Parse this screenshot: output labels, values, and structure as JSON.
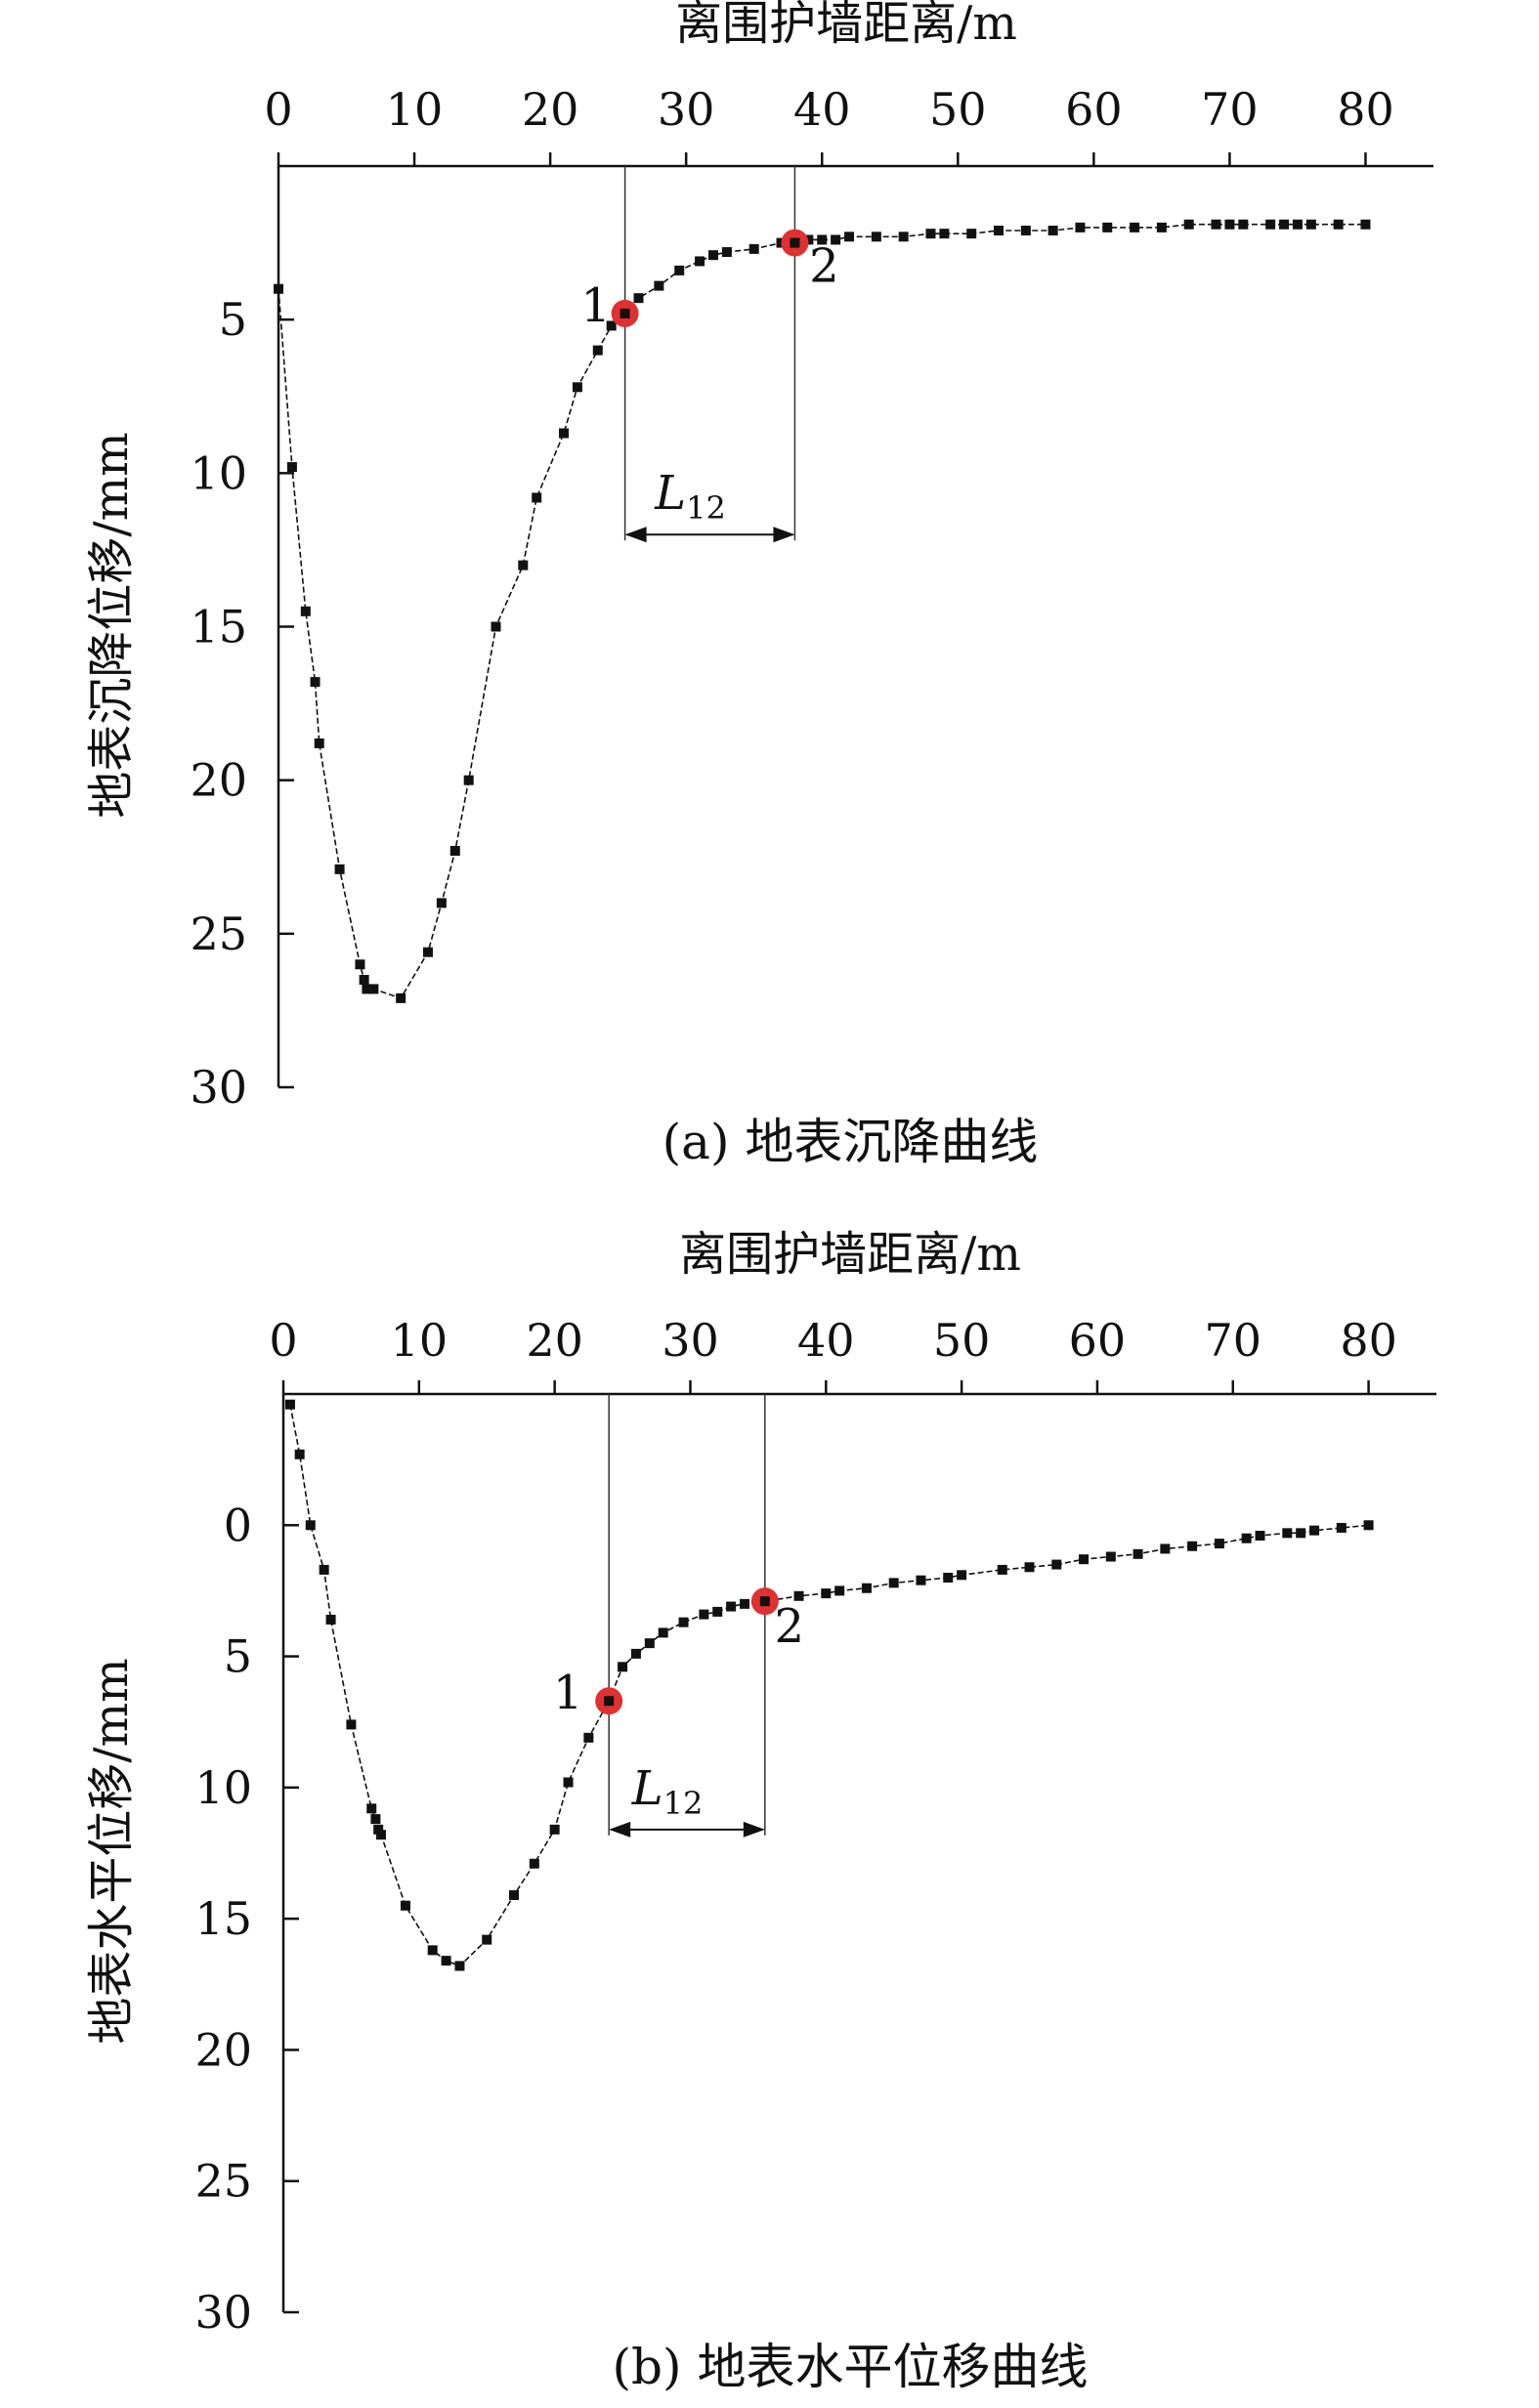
{
  "figure": {
    "panels": [
      {
        "id": "a",
        "caption": "(a) 地表沉降曲线",
        "annotation_labels": [
          "1",
          "2"
        ],
        "span_label": {
          "main": "L",
          "sub": "12"
        }
      },
      {
        "id": "b",
        "caption": "(b) 地表水平位移曲线",
        "annotation_labels": [
          "1",
          "2"
        ],
        "span_label": {
          "main": "L",
          "sub": "12"
        }
      }
    ],
    "colors": {
      "line": "#111111",
      "marker": "#111111",
      "highlight": "#e03030"
    }
  },
  "chart_data": [
    {
      "type": "line",
      "xlabel": "离围护墙距离/m",
      "ylabel": "地表沉降位移/mm",
      "x_axis_position": "top",
      "y_inverted": true,
      "xlim": [
        0,
        85
      ],
      "ylim": [
        0,
        30
      ],
      "xticks": [
        0,
        10,
        20,
        30,
        40,
        50,
        60,
        70,
        80
      ],
      "yticks": [
        5,
        10,
        15,
        20,
        25,
        30
      ],
      "grid": false,
      "legend": "none",
      "series": [
        {
          "x": [
            0,
            1,
            2,
            2.7,
            3,
            4.5,
            6,
            6.3,
            6.5,
            7,
            9,
            11,
            12,
            13,
            14,
            16,
            18,
            19,
            21,
            22,
            23.5,
            24.5,
            25.5,
            26.5,
            28,
            29.5,
            31,
            32,
            33,
            35,
            37,
            38,
            39,
            40,
            41,
            42,
            44,
            46,
            48,
            49,
            51,
            53,
            55,
            57,
            59,
            61,
            63,
            65,
            67,
            69,
            70,
            71,
            73,
            74,
            75,
            76,
            78,
            80
          ],
          "y": [
            4,
            9.8,
            14.5,
            16.8,
            18.8,
            22.9,
            26,
            26.5,
            26.8,
            26.8,
            27.1,
            25.6,
            24,
            22.3,
            20,
            15,
            13,
            10.8,
            8.7,
            7.2,
            6,
            5.2,
            4.8,
            4.3,
            3.9,
            3.4,
            3.1,
            2.9,
            2.8,
            2.7,
            2.5,
            2.5,
            2.4,
            2.4,
            2.4,
            2.3,
            2.3,
            2.3,
            2.2,
            2.2,
            2.2,
            2.1,
            2.1,
            2.1,
            2.0,
            2.0,
            2.0,
            2.0,
            1.9,
            1.9,
            1.9,
            1.9,
            1.9,
            1.9,
            1.9,
            1.9,
            1.9,
            1.9
          ]
        }
      ],
      "annotations": [
        {
          "label": "1",
          "x": 25.5,
          "y": 4.8
        },
        {
          "label": "2",
          "x": 38,
          "y": 2.5
        }
      ],
      "span": {
        "name": "L12",
        "x_start": 25.5,
        "x_end": 38,
        "y": 12
      }
    },
    {
      "type": "line",
      "xlabel": "离围护墙距离/m",
      "ylabel": "地表水平位移/mm",
      "x_axis_position": "top",
      "y_inverted": true,
      "xlim": [
        0,
        85
      ],
      "ylim": [
        -5,
        30
      ],
      "xticks": [
        0,
        10,
        20,
        30,
        40,
        50,
        60,
        70,
        80
      ],
      "yticks": [
        0,
        5,
        10,
        15,
        20,
        25,
        30
      ],
      "grid": false,
      "legend": "none",
      "series": [
        {
          "x": [
            0.5,
            1.2,
            2,
            3,
            3.5,
            5,
            6.5,
            6.8,
            7,
            7.2,
            9,
            11,
            12,
            13,
            15,
            17,
            18.5,
            20,
            21,
            22.5,
            24,
            25,
            26,
            27,
            28,
            29.5,
            31,
            32,
            33,
            34,
            35.5,
            38,
            40,
            41,
            43,
            45,
            47,
            49,
            50,
            53,
            55,
            57,
            59,
            61,
            63,
            65,
            67,
            69,
            71,
            72,
            74,
            75,
            76,
            78,
            80
          ],
          "y": [
            -4.6,
            -2.7,
            0,
            1.7,
            3.6,
            7.6,
            10.8,
            11.2,
            11.6,
            11.8,
            14.5,
            16.2,
            16.6,
            16.8,
            15.8,
            14.1,
            12.9,
            11.6,
            9.8,
            8.1,
            6.7,
            5.4,
            4.9,
            4.5,
            4.1,
            3.7,
            3.4,
            3.3,
            3.1,
            3.0,
            2.9,
            2.7,
            2.6,
            2.5,
            2.4,
            2.2,
            2.1,
            2.0,
            1.9,
            1.7,
            1.6,
            1.5,
            1.3,
            1.2,
            1.1,
            0.9,
            0.8,
            0.7,
            0.5,
            0.4,
            0.3,
            0.3,
            0.2,
            0.1,
            0
          ]
        }
      ],
      "annotations": [
        {
          "label": "1",
          "x": 24,
          "y": 6.7
        },
        {
          "label": "2",
          "x": 35.5,
          "y": 2.9
        }
      ],
      "span": {
        "name": "L12",
        "x_start": 24,
        "x_end": 35.5,
        "y": 11.6
      }
    }
  ]
}
